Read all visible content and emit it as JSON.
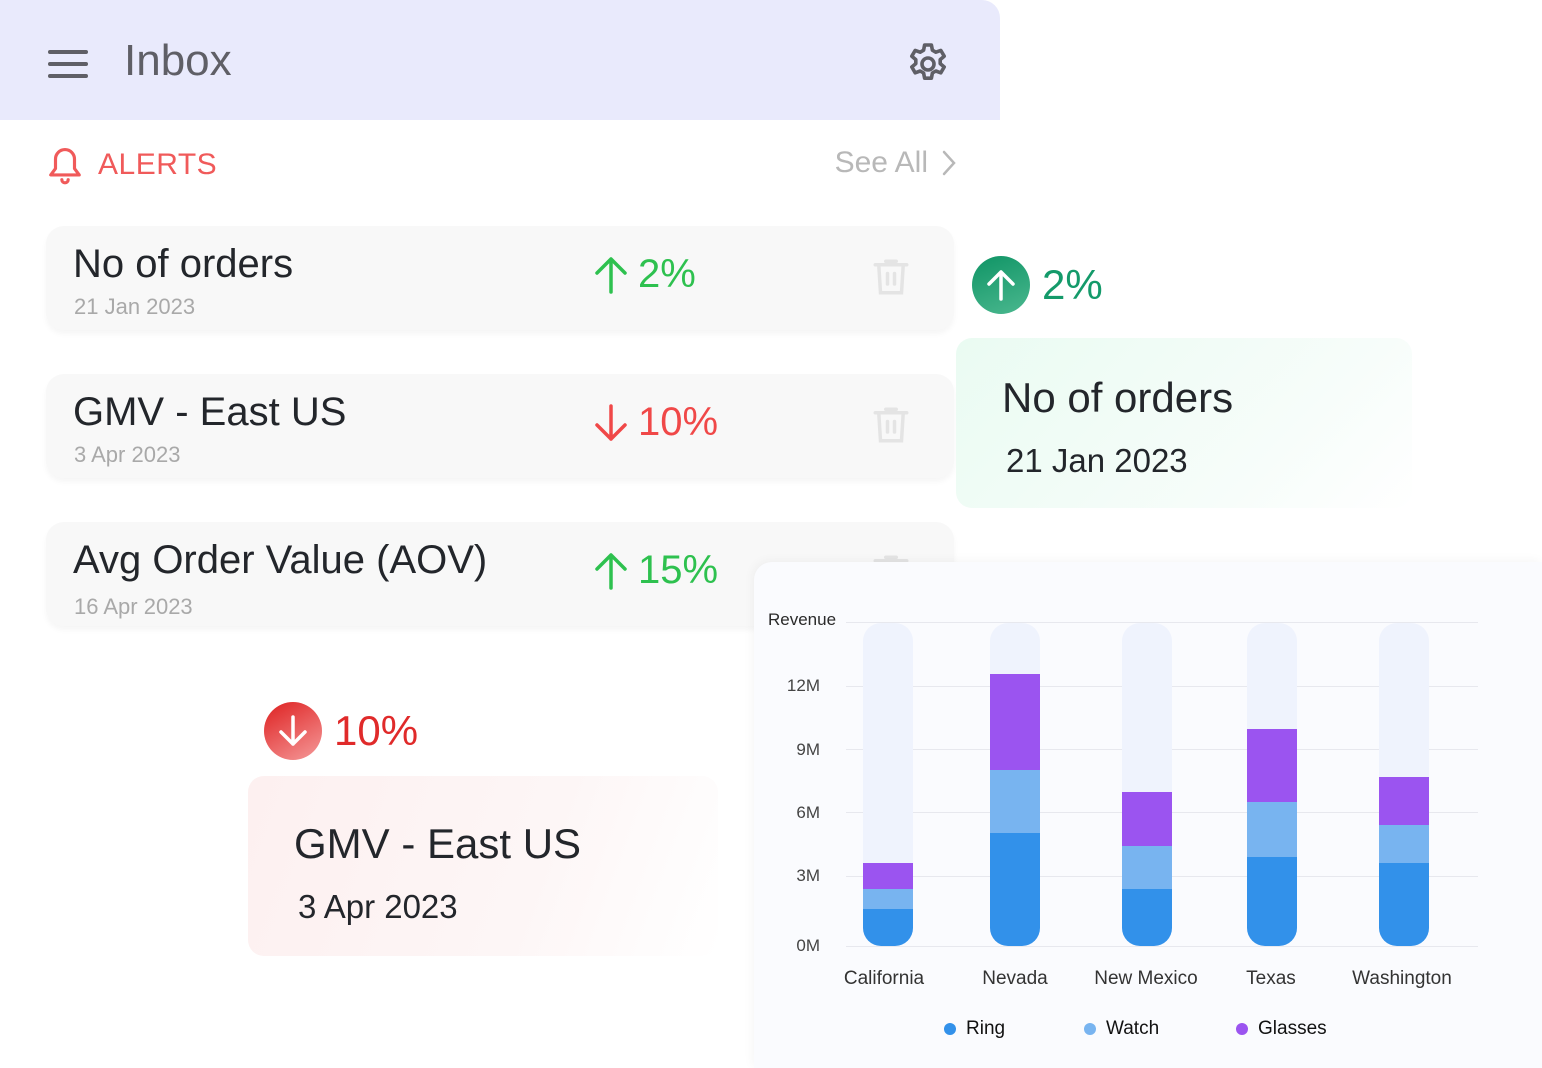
{
  "header": {
    "title": "Inbox",
    "menu_icon": "hamburger-menu-icon",
    "settings_icon": "gear-icon"
  },
  "alerts": {
    "label": "ALERTS",
    "icon": "bell-icon",
    "see_all": "See All",
    "items": [
      {
        "name": "No of orders",
        "date": "21 Jan 2023",
        "direction": "up",
        "change": "2%",
        "color": "#2ec14f"
      },
      {
        "name": "GMV - East US",
        "date": "3 Apr 2023",
        "direction": "down",
        "change": "10%",
        "color": "#f04848"
      },
      {
        "name": "Avg Order Value (AOV)",
        "date": "16 Apr 2023",
        "direction": "up",
        "change": "15%",
        "color": "#2ec14f"
      }
    ]
  },
  "highlight_up": {
    "change": "2%",
    "name": "No of orders",
    "date": "21 Jan 2023",
    "color": "#149a6a"
  },
  "highlight_down": {
    "change": "10%",
    "name": "GMV - East US",
    "date": "3 Apr 2023",
    "color": "#e02a2a"
  },
  "chart_data": {
    "type": "bar",
    "stacked": true,
    "title": "",
    "ylabel": "Revenue",
    "xlabel": "",
    "ylim": [
      0,
      14.8
    ],
    "yticks": [
      "0M",
      "3M",
      "6M",
      "9M",
      "12M"
    ],
    "categories": [
      "California",
      "Nevada",
      "New Mexico",
      "Texas",
      "Washington"
    ],
    "series": [
      {
        "name": "Ring",
        "color": "#3291ea",
        "values": [
          1.7,
          5.2,
          2.6,
          4.1,
          3.8
        ]
      },
      {
        "name": "Watch",
        "color": "#78b4f0",
        "values": [
          0.9,
          2.9,
          2.0,
          2.5,
          1.75
        ]
      },
      {
        "name": "Glasses",
        "color": "#9b54f0",
        "values": [
          1.2,
          4.4,
          2.5,
          3.4,
          2.2
        ]
      }
    ],
    "grid": true,
    "legend_position": "bottom"
  }
}
